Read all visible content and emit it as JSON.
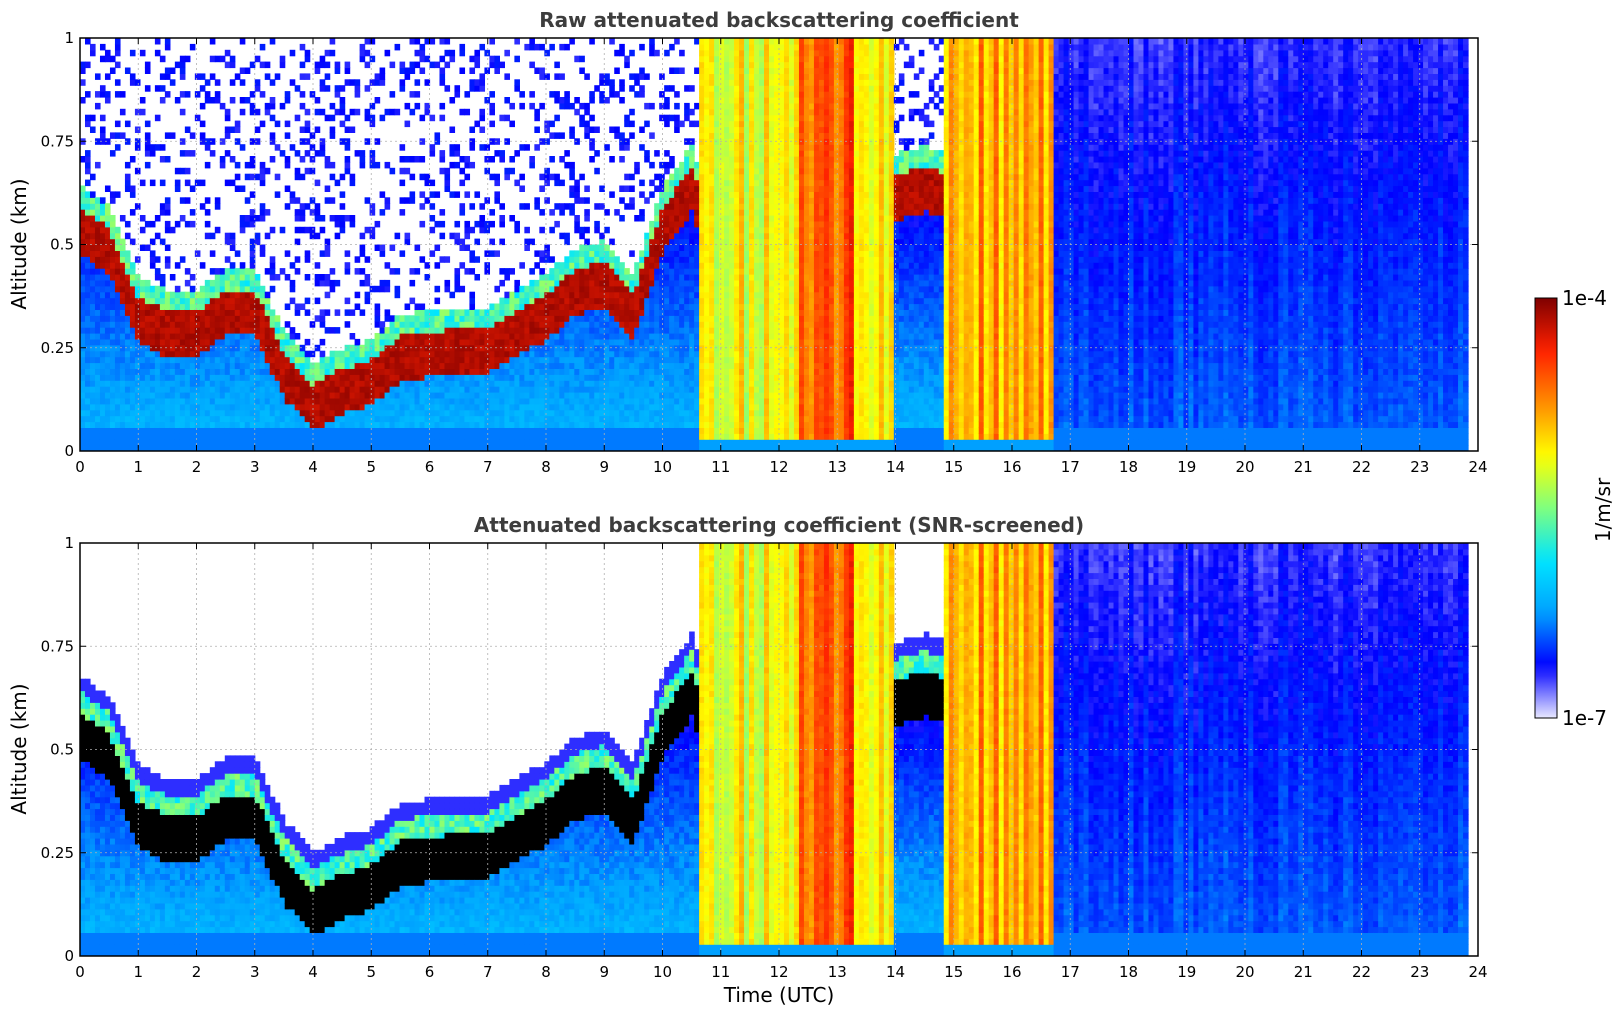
{
  "chart_data": [
    {
      "type": "heatmap",
      "title": "Raw attenuated backscattering coefficient",
      "xlabel": "",
      "ylabel": "Altitude (km)",
      "xlim": [
        0,
        24
      ],
      "ylim": [
        0,
        1
      ],
      "xticks": [
        "0",
        "1",
        "2",
        "3",
        "4",
        "5",
        "6",
        "7",
        "8",
        "9",
        "10",
        "11",
        "12",
        "13",
        "14",
        "15",
        "16",
        "17",
        "18",
        "19",
        "20",
        "21",
        "22",
        "23",
        "24"
      ],
      "yticks": [
        "0",
        "0.25",
        "0.5",
        "0.75",
        "1"
      ],
      "grid": true,
      "screened": false,
      "data_end_hour": 23.8,
      "layer_height_km": [
        [
          0,
          0.55
        ],
        [
          0.5,
          0.5
        ],
        [
          1,
          0.33
        ],
        [
          1.5,
          0.3
        ],
        [
          2,
          0.3
        ],
        [
          2.5,
          0.35
        ],
        [
          3,
          0.35
        ],
        [
          3.5,
          0.2
        ],
        [
          4,
          0.12
        ],
        [
          4.5,
          0.16
        ],
        [
          5,
          0.18
        ],
        [
          5.5,
          0.24
        ],
        [
          6,
          0.25
        ],
        [
          7,
          0.26
        ],
        [
          8,
          0.34
        ],
        [
          8.5,
          0.4
        ],
        [
          9,
          0.42
        ],
        [
          9.5,
          0.34
        ],
        [
          10,
          0.55
        ],
        [
          10.5,
          0.65
        ],
        [
          11,
          0.45
        ],
        [
          14,
          0.63
        ],
        [
          14.5,
          0.65
        ],
        [
          15,
          0.63
        ],
        [
          15.5,
          0.58
        ],
        [
          16,
          0.52
        ],
        [
          16.5,
          0.5
        ]
      ],
      "fog_periods_hours": [
        [
          10.6,
          12.3
        ],
        [
          12.3,
          13.3
        ],
        [
          13.3,
          14.0
        ],
        [
          14.8,
          16.7
        ]
      ]
    },
    {
      "type": "heatmap",
      "title": "Attenuated backscattering coefficient (SNR-screened)",
      "xlabel": "Time (UTC)",
      "ylabel": "Altitude (km)",
      "xlim": [
        0,
        24
      ],
      "ylim": [
        0,
        1
      ],
      "xticks": [
        "0",
        "1",
        "2",
        "3",
        "4",
        "5",
        "6",
        "7",
        "8",
        "9",
        "10",
        "11",
        "12",
        "13",
        "14",
        "15",
        "16",
        "17",
        "18",
        "19",
        "20",
        "21",
        "22",
        "23",
        "24"
      ],
      "yticks": [
        "0",
        "0.25",
        "0.5",
        "0.75",
        "1"
      ],
      "grid": true,
      "screened": true,
      "data_end_hour": 23.8,
      "layer_height_km": [
        [
          0,
          0.55
        ],
        [
          0.5,
          0.5
        ],
        [
          1,
          0.33
        ],
        [
          1.5,
          0.3
        ],
        [
          2,
          0.3
        ],
        [
          2.5,
          0.35
        ],
        [
          3,
          0.35
        ],
        [
          3.5,
          0.2
        ],
        [
          4,
          0.12
        ],
        [
          4.5,
          0.16
        ],
        [
          5,
          0.18
        ],
        [
          5.5,
          0.24
        ],
        [
          6,
          0.25
        ],
        [
          7,
          0.26
        ],
        [
          8,
          0.34
        ],
        [
          8.5,
          0.4
        ],
        [
          9,
          0.42
        ],
        [
          9.5,
          0.34
        ],
        [
          10,
          0.55
        ],
        [
          10.5,
          0.65
        ],
        [
          11,
          0.45
        ],
        [
          14,
          0.63
        ],
        [
          14.5,
          0.65
        ],
        [
          15,
          0.63
        ],
        [
          15.5,
          0.58
        ],
        [
          16,
          0.52
        ],
        [
          16.5,
          0.5
        ]
      ],
      "fog_periods_hours": [
        [
          10.6,
          12.3
        ],
        [
          12.3,
          13.3
        ],
        [
          13.3,
          14.0
        ],
        [
          14.8,
          16.7
        ]
      ]
    }
  ],
  "colorbar": {
    "max_label": "1e-4",
    "min_label": "1e-7",
    "unit_label": "1/m/sr",
    "scale": "log",
    "colormap": "jet",
    "colors": [
      "#e8e8ff",
      "#0000ff",
      "#00a0ff",
      "#00e5ff",
      "#7fff7f",
      "#ffff00",
      "#ff8c00",
      "#ff2000",
      "#7f0000"
    ]
  }
}
